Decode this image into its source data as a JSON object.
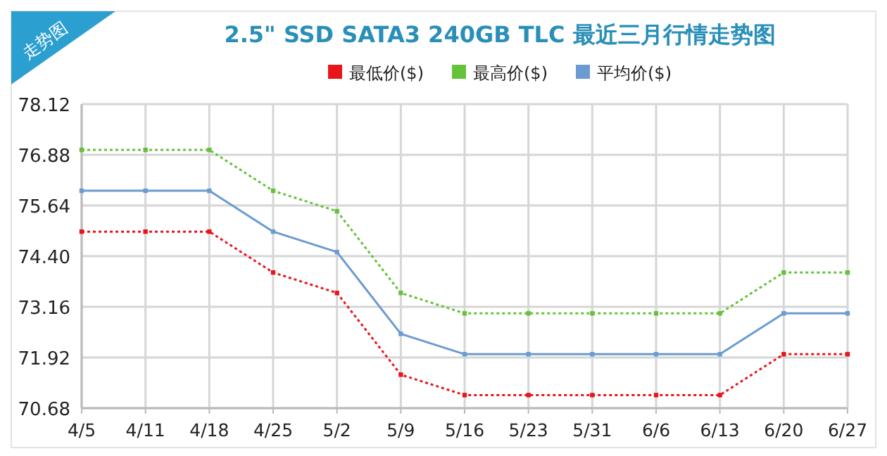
{
  "chart_data": {
    "type": "line",
    "title": "2.5\" SSD SATA3 240GB TLC 最近三月行情走势图",
    "annotations": [
      "走势图"
    ],
    "categories": [
      "4/5",
      "4/11",
      "4/18",
      "4/25",
      "5/2",
      "5/9",
      "5/16",
      "5/23",
      "5/31",
      "6/6",
      "6/13",
      "6/20",
      "6/27"
    ],
    "series": [
      {
        "name": "最低价($)",
        "color": "#e8161a",
        "line_style": "dotted",
        "values": [
          75,
          75,
          75,
          74,
          73.5,
          71.5,
          71,
          71,
          71,
          71,
          71,
          72,
          72
        ]
      },
      {
        "name": "最高价($)",
        "color": "#66c23a",
        "line_style": "dotted",
        "values": [
          77,
          77,
          77,
          76,
          75.5,
          73.5,
          73,
          73,
          73,
          73,
          73,
          74,
          74
        ]
      },
      {
        "name": "平均价($)",
        "color": "#6b9bd0",
        "line_style": "solid",
        "values": [
          76,
          76,
          76,
          75,
          74.5,
          72.5,
          72,
          72,
          72,
          72,
          72,
          73,
          73
        ]
      }
    ],
    "ylim": [
      70.68,
      78.12
    ],
    "yticks": [
      {
        "value": 70.68,
        "label": "70.68"
      },
      {
        "value": 71.92,
        "label": "71.92"
      },
      {
        "value": 73.16,
        "label": "73.16"
      },
      {
        "value": 74.4,
        "label": "74.40"
      },
      {
        "value": 75.64,
        "label": "75.64"
      },
      {
        "value": 76.88,
        "label": "76.88"
      },
      {
        "value": 78.12,
        "label": "78.12"
      }
    ],
    "grid": true,
    "legend": "top",
    "marker": "square"
  }
}
